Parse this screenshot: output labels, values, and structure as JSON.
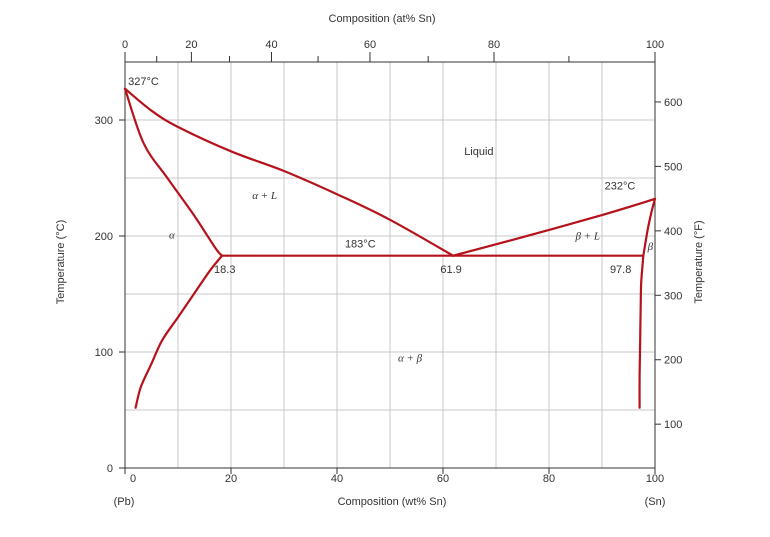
{
  "chart_data": {
    "type": "line",
    "title": "",
    "top_axis": {
      "label": "Composition (at% Sn)",
      "ticks": [
        0,
        20,
        40,
        60,
        80,
        100
      ],
      "minor_ticks": [
        10,
        30,
        50,
        70,
        90
      ]
    },
    "bottom_axis": {
      "label": "Composition (wt% Sn)",
      "range": [
        0,
        100
      ],
      "ticks": [
        0,
        20,
        40,
        60,
        80,
        100
      ],
      "end_labels": [
        "(Pb)",
        "(Sn)"
      ]
    },
    "left_axis": {
      "label": "Temperature (°C)",
      "range": [
        0,
        350
      ],
      "ticks": [
        0,
        100,
        200,
        300
      ]
    },
    "right_axis": {
      "label": "Temperature (°F)",
      "ticks": [
        100,
        200,
        300,
        400,
        500,
        600
      ]
    },
    "grid": true,
    "series": [
      {
        "x": [
          0,
          3.5,
          8,
          13,
          17,
          18.3
        ],
        "y": [
          327,
          280,
          250,
          218,
          190,
          183
        ]
      },
      {
        "x": [
          0,
          5,
          10,
          20,
          30,
          40,
          50,
          61.9
        ],
        "y": [
          327,
          308,
          294,
          273,
          256,
          236,
          214,
          183
        ]
      },
      {
        "x": [
          61.9,
          75,
          90,
          100
        ],
        "y": [
          183,
          199,
          218,
          232
        ]
      },
      {
        "x": [
          18.3,
          16,
          13,
          10,
          7,
          5,
          3,
          2
        ],
        "y": [
          183,
          170,
          150,
          130,
          110,
          90,
          70,
          52
        ]
      },
      {
        "x": [
          18.3,
          61.9,
          97.8
        ],
        "y": [
          183,
          183,
          183
        ]
      },
      {
        "x": [
          97.8,
          97.4,
          97.3,
          97.2,
          97.1,
          97.1
        ],
        "y": [
          183,
          160,
          140,
          110,
          80,
          52
        ]
      },
      {
        "x": [
          97.8,
          98.6,
          99.3,
          100
        ],
        "y": [
          183,
          205,
          220,
          232
        ]
      }
    ],
    "annotations": [
      {
        "text": "327°C",
        "x": 0.6,
        "y": 330
      },
      {
        "text": "Liquid",
        "x": 64,
        "y": 270
      },
      {
        "text": "232°C",
        "x": 90.5,
        "y": 240
      },
      {
        "text": "183°C",
        "x": 41.5,
        "y": 190
      },
      {
        "text": "18.3",
        "x": 16.8,
        "y": 168
      },
      {
        "text": "61.9",
        "x": 59.5,
        "y": 168
      },
      {
        "text": "97.8",
        "x": 91.5,
        "y": 168
      }
    ],
    "regions": [
      {
        "text": "α + L",
        "x": 24,
        "y": 232
      },
      {
        "text": "α",
        "x": 8.3,
        "y": 198
      },
      {
        "text": "β + L",
        "x": 85,
        "y": 197
      },
      {
        "text": "β",
        "x": 98.6,
        "y": 188
      },
      {
        "text": "α + β",
        "x": 51.5,
        "y": 92
      }
    ]
  }
}
